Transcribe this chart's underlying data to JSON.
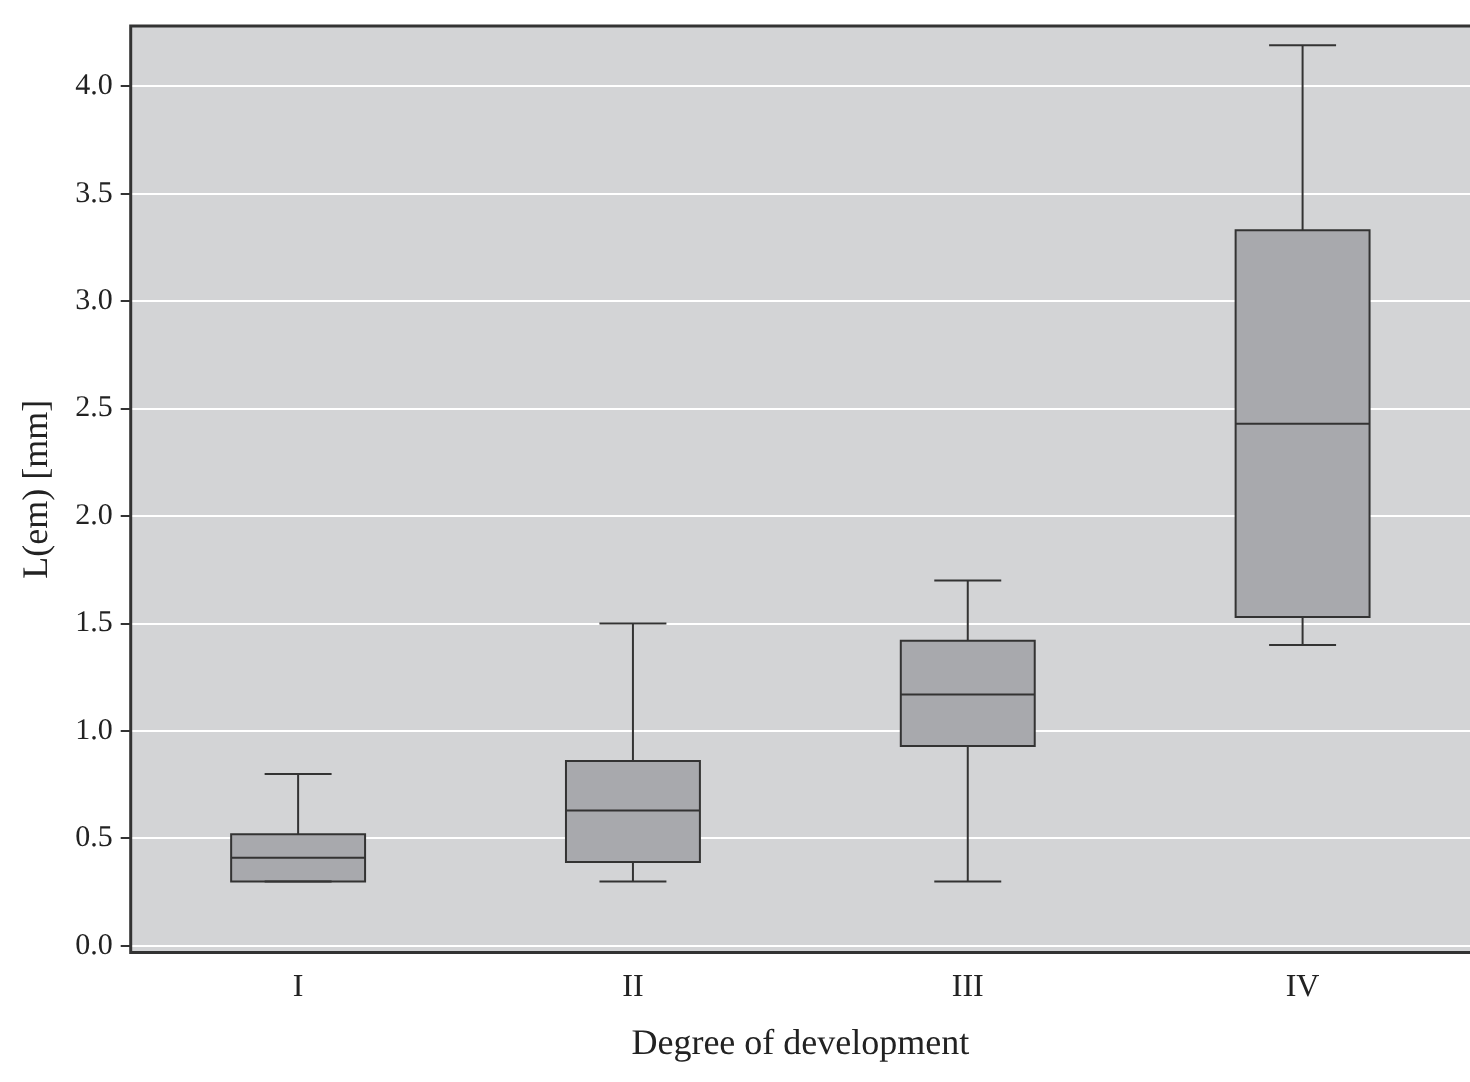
{
  "chart_data": {
    "type": "box",
    "xlabel": "Degree of development",
    "ylabel": "L(em) [mm]",
    "categories": [
      "I",
      "II",
      "III",
      "IV"
    ],
    "color": "#a8a9ad",
    "boxes": [
      {
        "low": 0.3,
        "q1": 0.3,
        "median": 0.41,
        "q3": 0.52,
        "high": 0.8
      },
      {
        "low": 0.3,
        "q1": 0.39,
        "median": 0.63,
        "q3": 0.86,
        "high": 1.5
      },
      {
        "low": 0.3,
        "q1": 0.93,
        "median": 1.17,
        "q3": 1.42,
        "high": 1.7
      },
      {
        "low": 1.4,
        "q1": 1.53,
        "median": 2.43,
        "q3": 3.33,
        "high": 4.19
      }
    ],
    "ylim": [
      -0.03,
      4.28
    ],
    "yticks": [
      {
        "value": 0,
        "label": "0.0"
      },
      0.5,
      {
        "value": 1,
        "label": "1.0"
      },
      1.5,
      {
        "value": 2,
        "label": "2.0"
      },
      2.5,
      {
        "value": 3,
        "label": "3.0"
      },
      3.5,
      {
        "value": 4,
        "label": "4.0"
      }
    ],
    "grid": "y",
    "legend": false
  }
}
